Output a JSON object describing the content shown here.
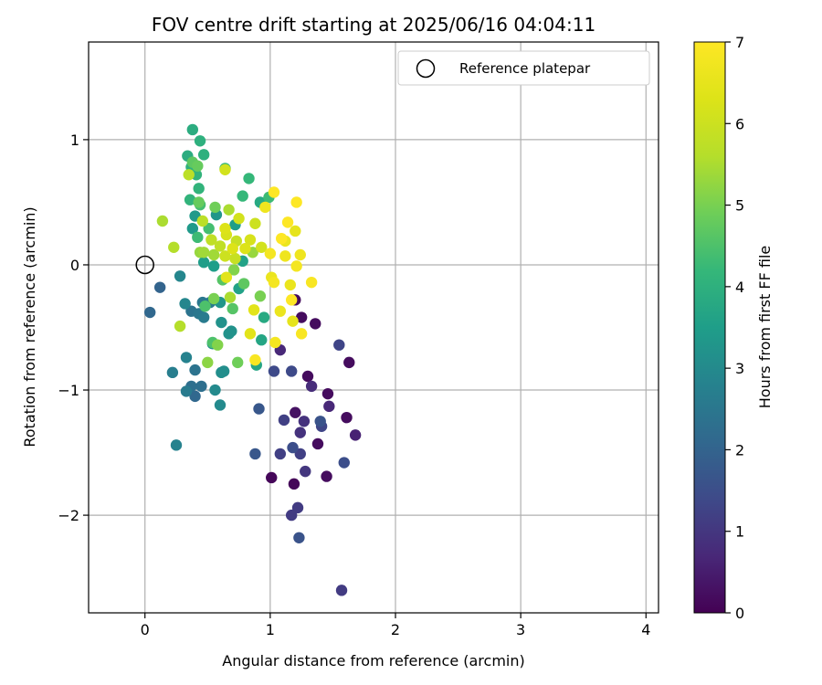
{
  "chart_data": {
    "type": "scatter",
    "title": "FOV centre drift starting at 2025/06/16 04:04:11",
    "xlabel": "Angular distance from reference (arcmin)",
    "ylabel": "Rotation from reference (arcmin)",
    "colorbar_label": "Hours from first FF file",
    "xlim": [
      -0.45,
      4.1
    ],
    "ylim": [
      -2.78,
      1.78
    ],
    "clim": [
      0,
      7
    ],
    "x_ticks": [
      0,
      1,
      2,
      3,
      4
    ],
    "y_ticks": [
      -2,
      -1,
      0,
      1
    ],
    "y_tick_labels": [
      "−2",
      "−1",
      "0",
      "1"
    ],
    "c_ticks": [
      0,
      1,
      2,
      3,
      4,
      5,
      6,
      7
    ],
    "grid": true,
    "colormap": "viridis",
    "legend": {
      "position": "top-right",
      "entries": [
        {
          "label": "Reference platepar",
          "marker": "open-circle"
        }
      ]
    },
    "reference_point": {
      "x": 0,
      "y": 0
    },
    "points": [
      {
        "x": 1.01,
        "y": -1.7,
        "c": 0.1
      },
      {
        "x": 1.19,
        "y": -1.75,
        "c": 0.1
      },
      {
        "x": 1.45,
        "y": -1.69,
        "c": 0.2
      },
      {
        "x": 1.38,
        "y": -1.43,
        "c": 0.2
      },
      {
        "x": 1.61,
        "y": -1.22,
        "c": 0.2
      },
      {
        "x": 1.46,
        "y": -1.03,
        "c": 0.2
      },
      {
        "x": 1.63,
        "y": -0.78,
        "c": 0.2
      },
      {
        "x": 1.3,
        "y": -0.89,
        "c": 0.2
      },
      {
        "x": 1.36,
        "y": -0.47,
        "c": 0.2
      },
      {
        "x": 1.25,
        "y": -0.42,
        "c": 0.2
      },
      {
        "x": 1.2,
        "y": -0.28,
        "c": 0.2
      },
      {
        "x": 1.2,
        "y": -1.18,
        "c": 0.3
      },
      {
        "x": 1.68,
        "y": -1.36,
        "c": 0.6
      },
      {
        "x": 1.47,
        "y": -1.13,
        "c": 0.7
      },
      {
        "x": 1.08,
        "y": -0.68,
        "c": 0.7
      },
      {
        "x": 1.33,
        "y": -0.97,
        "c": 0.8
      },
      {
        "x": 1.27,
        "y": -1.25,
        "c": 0.9
      },
      {
        "x": 1.24,
        "y": -1.34,
        "c": 0.9
      },
      {
        "x": 1.28,
        "y": -1.65,
        "c": 1.0
      },
      {
        "x": 1.57,
        "y": -2.6,
        "c": 1.1
      },
      {
        "x": 1.22,
        "y": -1.94,
        "c": 1.1
      },
      {
        "x": 1.17,
        "y": -2.0,
        "c": 1.1
      },
      {
        "x": 1.24,
        "y": -1.51,
        "c": 1.2
      },
      {
        "x": 1.08,
        "y": -1.51,
        "c": 1.2
      },
      {
        "x": 1.11,
        "y": -1.24,
        "c": 1.2
      },
      {
        "x": 1.41,
        "y": -1.29,
        "c": 1.3
      },
      {
        "x": 1.55,
        "y": -0.64,
        "c": 1.3
      },
      {
        "x": 1.17,
        "y": -0.85,
        "c": 1.4
      },
      {
        "x": 1.03,
        "y": -0.85,
        "c": 1.4
      },
      {
        "x": 1.59,
        "y": -1.58,
        "c": 1.5
      },
      {
        "x": 1.18,
        "y": -1.46,
        "c": 1.5
      },
      {
        "x": 1.4,
        "y": -1.25,
        "c": 1.6
      },
      {
        "x": 1.23,
        "y": -2.18,
        "c": 1.6
      },
      {
        "x": 0.88,
        "y": -1.51,
        "c": 1.7
      },
      {
        "x": 0.91,
        "y": -1.15,
        "c": 1.7
      },
      {
        "x": 0.12,
        "y": -0.18,
        "c": 2.0
      },
      {
        "x": 0.04,
        "y": -0.38,
        "c": 2.1
      },
      {
        "x": 0.4,
        "y": -1.05,
        "c": 2.1
      },
      {
        "x": 0.37,
        "y": -0.97,
        "c": 2.3
      },
      {
        "x": 0.45,
        "y": -0.97,
        "c": 2.3
      },
      {
        "x": 0.4,
        "y": -0.84,
        "c": 2.4
      },
      {
        "x": 0.37,
        "y": -0.37,
        "c": 2.4
      },
      {
        "x": 0.43,
        "y": -0.39,
        "c": 2.5
      },
      {
        "x": 0.46,
        "y": -0.3,
        "c": 2.5
      },
      {
        "x": 0.52,
        "y": -0.3,
        "c": 2.6
      },
      {
        "x": 0.47,
        "y": -0.42,
        "c": 2.6
      },
      {
        "x": 0.33,
        "y": -1.01,
        "c": 2.6
      },
      {
        "x": 0.22,
        "y": -0.86,
        "c": 2.7
      },
      {
        "x": 0.25,
        "y": -1.44,
        "c": 2.8
      },
      {
        "x": 0.33,
        "y": -0.74,
        "c": 2.8
      },
      {
        "x": 0.32,
        "y": -0.31,
        "c": 2.9
      },
      {
        "x": 0.28,
        "y": -0.09,
        "c": 2.9
      },
      {
        "x": 0.56,
        "y": -1.0,
        "c": 3.0
      },
      {
        "x": 0.6,
        "y": -1.12,
        "c": 3.0
      },
      {
        "x": 0.61,
        "y": -0.86,
        "c": 3.1
      },
      {
        "x": 0.63,
        "y": -0.85,
        "c": 3.1
      },
      {
        "x": 0.54,
        "y": -0.63,
        "c": 3.1
      },
      {
        "x": 0.61,
        "y": -0.46,
        "c": 3.2
      },
      {
        "x": 0.69,
        "y": -0.53,
        "c": 3.2
      },
      {
        "x": 0.67,
        "y": -0.55,
        "c": 3.2
      },
      {
        "x": 0.6,
        "y": -0.3,
        "c": 3.3
      },
      {
        "x": 0.57,
        "y": 0.4,
        "c": 3.3
      },
      {
        "x": 0.38,
        "y": 0.29,
        "c": 3.4
      },
      {
        "x": 0.4,
        "y": 0.39,
        "c": 3.4
      },
      {
        "x": 0.55,
        "y": -0.01,
        "c": 3.5
      },
      {
        "x": 0.47,
        "y": 0.02,
        "c": 3.5
      },
      {
        "x": 0.72,
        "y": 0.32,
        "c": 3.5
      },
      {
        "x": 0.75,
        "y": -0.19,
        "c": 3.6
      },
      {
        "x": 0.78,
        "y": 0.03,
        "c": 3.6
      },
      {
        "x": 0.89,
        "y": -0.8,
        "c": 3.7
      },
      {
        "x": 0.93,
        "y": -0.6,
        "c": 3.7
      },
      {
        "x": 0.95,
        "y": -0.42,
        "c": 3.8
      },
      {
        "x": 0.92,
        "y": 0.5,
        "c": 3.8
      },
      {
        "x": 0.38,
        "y": 1.08,
        "c": 3.9
      },
      {
        "x": 0.34,
        "y": 0.87,
        "c": 3.9
      },
      {
        "x": 0.44,
        "y": 0.99,
        "c": 4.0
      },
      {
        "x": 0.47,
        "y": 0.88,
        "c": 4.0
      },
      {
        "x": 0.37,
        "y": 0.78,
        "c": 4.0
      },
      {
        "x": 0.41,
        "y": 0.72,
        "c": 4.1
      },
      {
        "x": 0.43,
        "y": 0.61,
        "c": 4.1
      },
      {
        "x": 0.36,
        "y": 0.52,
        "c": 4.1
      },
      {
        "x": 0.64,
        "y": 0.77,
        "c": 4.2
      },
      {
        "x": 0.78,
        "y": 0.55,
        "c": 4.2
      },
      {
        "x": 0.83,
        "y": 0.69,
        "c": 4.2
      },
      {
        "x": 0.99,
        "y": 0.54,
        "c": 4.3
      },
      {
        "x": 0.42,
        "y": 0.22,
        "c": 4.3
      },
      {
        "x": 0.51,
        "y": 0.29,
        "c": 4.4
      },
      {
        "x": 0.44,
        "y": 0.48,
        "c": 4.4
      },
      {
        "x": 0.54,
        "y": -0.62,
        "c": 4.5
      },
      {
        "x": 0.48,
        "y": -0.33,
        "c": 4.5
      },
      {
        "x": 0.62,
        "y": -0.12,
        "c": 4.6
      },
      {
        "x": 0.7,
        "y": -0.35,
        "c": 4.6
      },
      {
        "x": 0.79,
        "y": -0.15,
        "c": 4.7
      },
      {
        "x": 0.38,
        "y": 0.82,
        "c": 4.7
      },
      {
        "x": 0.42,
        "y": 0.79,
        "c": 4.8
      },
      {
        "x": 0.43,
        "y": 0.5,
        "c": 4.8
      },
      {
        "x": 0.56,
        "y": 0.46,
        "c": 4.9
      },
      {
        "x": 0.74,
        "y": -0.78,
        "c": 4.9
      },
      {
        "x": 0.92,
        "y": -0.25,
        "c": 5.0
      },
      {
        "x": 0.55,
        "y": -0.27,
        "c": 5.0
      },
      {
        "x": 0.58,
        "y": -0.64,
        "c": 5.1
      },
      {
        "x": 0.71,
        "y": -0.04,
        "c": 5.1
      },
      {
        "x": 0.5,
        "y": -0.78,
        "c": 5.2
      },
      {
        "x": 0.86,
        "y": 0.1,
        "c": 5.3
      },
      {
        "x": 0.44,
        "y": 0.1,
        "c": 5.3
      },
      {
        "x": 0.47,
        "y": 0.1,
        "c": 5.4
      },
      {
        "x": 0.55,
        "y": 0.08,
        "c": 5.4
      },
      {
        "x": 0.67,
        "y": 0.44,
        "c": 5.5
      },
      {
        "x": 0.68,
        "y": -0.26,
        "c": 5.5
      },
      {
        "x": 0.14,
        "y": 0.35,
        "c": 5.5
      },
      {
        "x": 0.23,
        "y": 0.14,
        "c": 5.6
      },
      {
        "x": 0.28,
        "y": -0.49,
        "c": 5.6
      },
      {
        "x": 0.35,
        "y": 0.72,
        "c": 5.7
      },
      {
        "x": 0.46,
        "y": 0.35,
        "c": 5.7
      },
      {
        "x": 0.53,
        "y": 0.2,
        "c": 5.8
      },
      {
        "x": 0.6,
        "y": 0.15,
        "c": 5.8
      },
      {
        "x": 0.72,
        "y": 0.05,
        "c": 5.9
      },
      {
        "x": 0.73,
        "y": 0.19,
        "c": 5.9
      },
      {
        "x": 0.64,
        "y": 0.07,
        "c": 6.0
      },
      {
        "x": 0.88,
        "y": 0.33,
        "c": 6.0
      },
      {
        "x": 0.75,
        "y": 0.37,
        "c": 6.1
      },
      {
        "x": 0.64,
        "y": 0.76,
        "c": 6.1
      },
      {
        "x": 0.93,
        "y": 0.14,
        "c": 6.1
      },
      {
        "x": 0.84,
        "y": 0.2,
        "c": 6.2
      },
      {
        "x": 0.65,
        "y": 0.24,
        "c": 6.2
      },
      {
        "x": 0.7,
        "y": 0.13,
        "c": 6.3
      },
      {
        "x": 0.64,
        "y": 0.29,
        "c": 6.3
      },
      {
        "x": 0.8,
        "y": 0.13,
        "c": 6.3
      },
      {
        "x": 0.65,
        "y": -0.1,
        "c": 6.4
      },
      {
        "x": 0.84,
        "y": -0.55,
        "c": 6.4
      },
      {
        "x": 0.87,
        "y": -0.36,
        "c": 6.4
      },
      {
        "x": 1.2,
        "y": 0.27,
        "c": 6.5
      },
      {
        "x": 1.18,
        "y": -0.45,
        "c": 6.5
      },
      {
        "x": 1.12,
        "y": 0.19,
        "c": 6.6
      },
      {
        "x": 1.16,
        "y": -0.16,
        "c": 6.6
      },
      {
        "x": 1.01,
        "y": -0.1,
        "c": 6.6
      },
      {
        "x": 1.08,
        "y": -0.37,
        "c": 6.6
      },
      {
        "x": 0.96,
        "y": 0.46,
        "c": 6.7
      },
      {
        "x": 1.12,
        "y": 0.07,
        "c": 6.7
      },
      {
        "x": 1.24,
        "y": 0.08,
        "c": 6.7
      },
      {
        "x": 1.21,
        "y": -0.01,
        "c": 6.8
      },
      {
        "x": 1.0,
        "y": 0.09,
        "c": 6.8
      },
      {
        "x": 1.03,
        "y": -0.14,
        "c": 6.8
      },
      {
        "x": 1.04,
        "y": -0.62,
        "c": 6.8
      },
      {
        "x": 0.88,
        "y": -0.76,
        "c": 6.9
      },
      {
        "x": 1.25,
        "y": -0.55,
        "c": 6.9
      },
      {
        "x": 1.33,
        "y": -0.14,
        "c": 6.9
      },
      {
        "x": 1.03,
        "y": 0.58,
        "c": 7.0
      },
      {
        "x": 1.21,
        "y": 0.5,
        "c": 7.0
      },
      {
        "x": 1.14,
        "y": 0.34,
        "c": 7.0
      },
      {
        "x": 1.09,
        "y": 0.21,
        "c": 7.0
      },
      {
        "x": 1.17,
        "y": -0.28,
        "c": 7.0
      }
    ]
  }
}
